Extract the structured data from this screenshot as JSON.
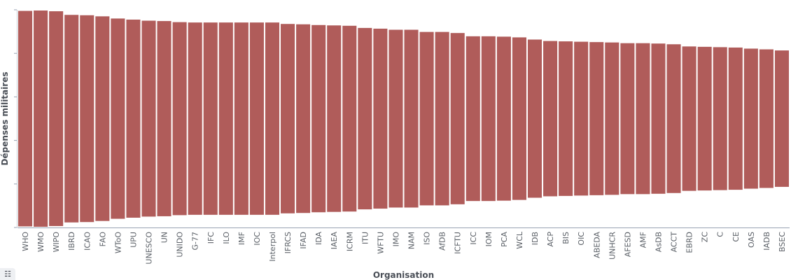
{
  "chart_data": {
    "type": "bar",
    "subtype": "floating-symmetric",
    "xlabel": "Organisation",
    "ylabel": "Dépenses militaires",
    "grid": false,
    "categories": [
      "WHO",
      "WMO",
      "WIPO",
      "IBRD",
      "ICAO",
      "FAO",
      "WToO",
      "UPU",
      "UNESCO",
      "UN",
      "UNIDO",
      "G-77",
      "IFC",
      "ILO",
      "IMF",
      "IOC",
      "Interpol",
      "IFRCS",
      "IFAD",
      "IDA",
      "IAEA",
      "ICRM",
      "ITU",
      "WFTU",
      "IMO",
      "NAM",
      "ISO",
      "AfDB",
      "ICFTU",
      "ICC",
      "IOM",
      "PCA",
      "WCL",
      "IDB",
      "ACP",
      "BIS",
      "OIC",
      "ABEDA",
      "UNHCR",
      "AFESD",
      "AMF",
      "AsDB",
      "ACCT",
      "EBRD",
      "ZC",
      "C",
      "CE",
      "OAS",
      "IADB",
      "BSEC"
    ],
    "values": [
      297,
      298,
      296,
      286,
      285,
      282,
      276,
      273,
      270,
      269,
      266,
      265,
      265,
      265,
      265,
      265,
      265,
      261,
      260,
      258,
      257,
      256,
      250,
      248,
      245,
      245,
      239,
      239,
      236,
      227,
      227,
      226,
      224,
      218,
      214,
      213,
      212,
      211,
      210,
      208,
      208,
      207,
      205,
      199,
      198,
      197,
      196,
      193,
      191,
      188
    ]
  },
  "legend_toggle": {
    "icon": "list-icon",
    "glyph": "☷"
  }
}
